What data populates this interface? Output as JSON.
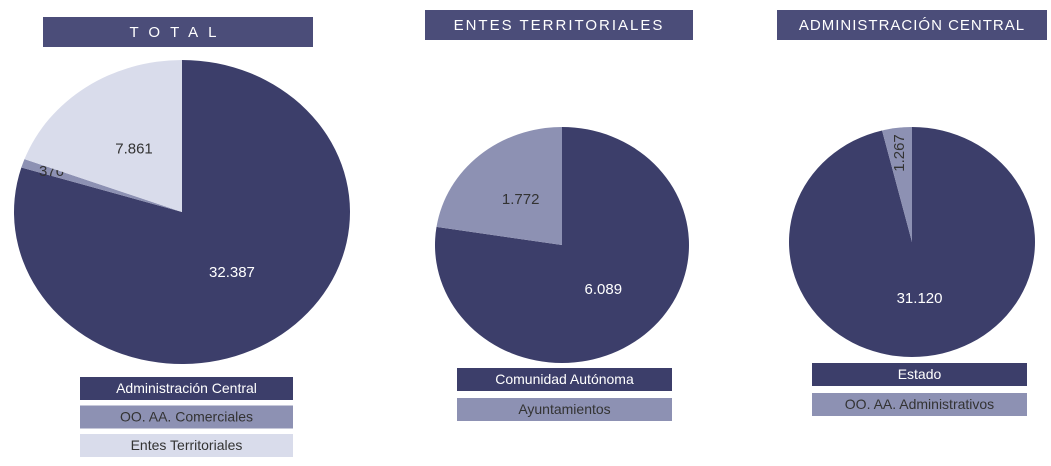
{
  "chart_data": [
    {
      "type": "pie",
      "title": "TOTAL",
      "categories": [
        "Administración Central",
        "OO. AA. Comerciales",
        "Entes Territoriales"
      ],
      "values": [
        32387,
        376,
        7861
      ],
      "value_labels": [
        "32.387",
        "376",
        "7.861"
      ],
      "colors": [
        "#3c3e6a",
        "#8d91b3",
        "#d9dceb"
      ]
    },
    {
      "type": "pie",
      "title": "ENTES TERRITORIALES",
      "categories": [
        "Comunidad Autónoma",
        "Ayuntamientos"
      ],
      "values": [
        6089,
        1772
      ],
      "value_labels": [
        "6.089",
        "1.772"
      ],
      "colors": [
        "#3c3e6a",
        "#8d91b3"
      ]
    },
    {
      "type": "pie",
      "title": "ADMINISTRACIÓN CENTRAL",
      "categories": [
        "Estado",
        "OO. AA. Administrativos"
      ],
      "values": [
        31120,
        1267
      ],
      "value_labels": [
        "31.120",
        "1.267"
      ],
      "colors": [
        "#3c3e6a",
        "#8d91b3"
      ]
    }
  ]
}
